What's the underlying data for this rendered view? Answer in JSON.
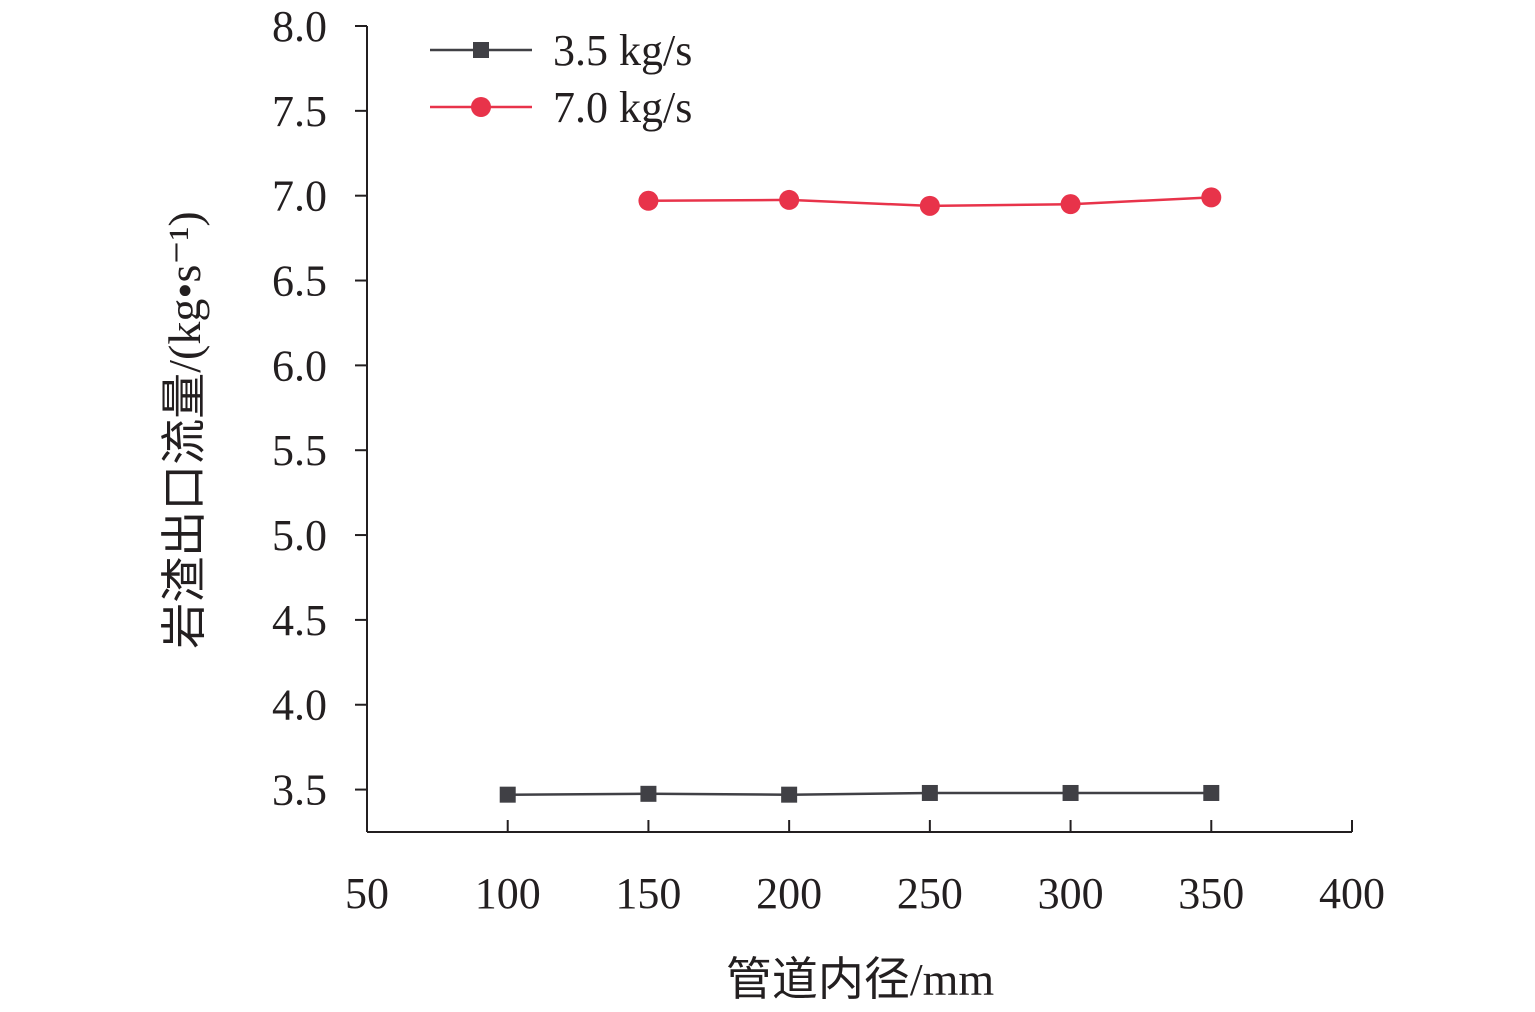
{
  "chart_data": {
    "type": "line",
    "title": "",
    "xlabel": "管道内径/mm",
    "ylabel": "岩渣出口流量/(kg•s⁻¹)",
    "xlim": [
      50,
      400
    ],
    "ylim": [
      3.25,
      8.0
    ],
    "x_ticks": [
      "50",
      "100",
      "150",
      "200",
      "250",
      "300",
      "350",
      "400"
    ],
    "x_tick_values": [
      50,
      100,
      150,
      200,
      250,
      300,
      350,
      400
    ],
    "y_ticks": [
      "3.5",
      "4.0",
      "4.5",
      "5.0",
      "5.5",
      "6.0",
      "6.5",
      "7.0",
      "7.5",
      "8.0"
    ],
    "y_tick_values": [
      3.5,
      4.0,
      4.5,
      5.0,
      5.5,
      6.0,
      6.5,
      7.0,
      7.5,
      8.0
    ],
    "grid": false,
    "legend_position": "top-left",
    "series": [
      {
        "name": "3.5 kg/s",
        "color": "#404045",
        "marker": "square",
        "x": [
          100,
          150,
          200,
          250,
          300,
          350
        ],
        "y": [
          3.47,
          3.475,
          3.47,
          3.48,
          3.48,
          3.48
        ]
      },
      {
        "name": "7.0 kg/s",
        "color": "#e8334a",
        "marker": "circle",
        "x": [
          150,
          200,
          250,
          300,
          350
        ],
        "y": [
          6.97,
          6.975,
          6.94,
          6.95,
          6.99
        ]
      }
    ]
  }
}
